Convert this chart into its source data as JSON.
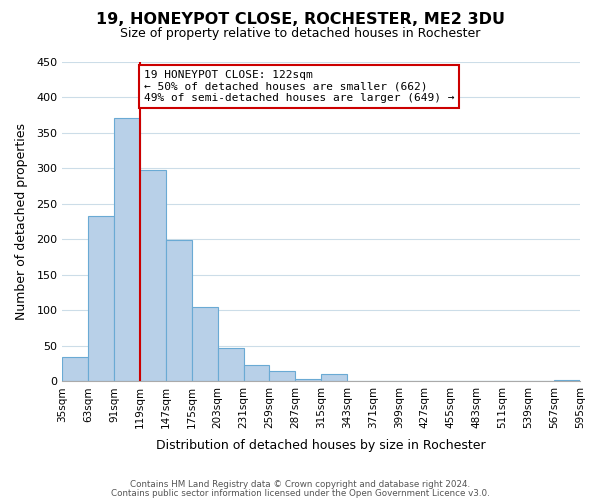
{
  "title": "19, HONEYPOT CLOSE, ROCHESTER, ME2 3DU",
  "subtitle": "Size of property relative to detached houses in Rochester",
  "xlabel": "Distribution of detached houses by size in Rochester",
  "ylabel": "Number of detached properties",
  "bar_values": [
    35,
    233,
    370,
    298,
    199,
    105,
    47,
    23,
    15,
    3,
    10,
    1,
    0,
    0,
    0,
    0,
    0,
    0,
    0,
    2
  ],
  "bar_labels": [
    "35sqm",
    "63sqm",
    "91sqm",
    "119sqm",
    "147sqm",
    "175sqm",
    "203sqm",
    "231sqm",
    "259sqm",
    "287sqm",
    "315sqm",
    "343sqm",
    "371sqm",
    "399sqm",
    "427sqm",
    "455sqm",
    "483sqm",
    "511sqm",
    "539sqm",
    "567sqm",
    "595sqm"
  ],
  "ylim": [
    0,
    450
  ],
  "yticks": [
    0,
    50,
    100,
    150,
    200,
    250,
    300,
    350,
    400,
    450
  ],
  "bar_color": "#b8d0e8",
  "bar_edge_color": "#6aaad4",
  "annotation_box_text": "19 HONEYPOT CLOSE: 122sqm\n← 50% of detached houses are smaller (662)\n49% of semi-detached houses are larger (649) →",
  "annotation_box_color": "#ffffff",
  "annotation_box_edge_color": "#cc0000",
  "vline_color": "#cc0000",
  "footer_line1": "Contains HM Land Registry data © Crown copyright and database right 2024.",
  "footer_line2": "Contains public sector information licensed under the Open Government Licence v3.0.",
  "background_color": "#ffffff",
  "grid_color": "#ccdde8"
}
